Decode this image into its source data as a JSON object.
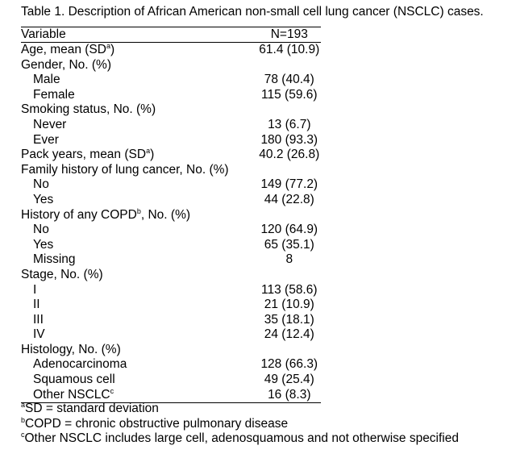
{
  "caption": "Table 1. Description of African American non-small cell lung cancer (NSCLC) cases.",
  "header": {
    "variable": "Variable",
    "n": "N=193"
  },
  "rows": [
    {
      "label": "Age, mean (SD",
      "sup": "a",
      "suffix": ")",
      "value": "61.4 (10.9)",
      "indent": false
    },
    {
      "label": "Gender, No. (%)",
      "value": "",
      "indent": false
    },
    {
      "label": "Male",
      "value": "78 (40.4)",
      "indent": true
    },
    {
      "label": "Female",
      "value": "115 (59.6)",
      "indent": true
    },
    {
      "label": "Smoking status, No. (%)",
      "value": "",
      "indent": false
    },
    {
      "label": "Never",
      "value": "13 (6.7)",
      "indent": true
    },
    {
      "label": "Ever",
      "value": "180 (93.3)",
      "indent": true
    },
    {
      "label": "Pack years, mean (SD",
      "sup": "a",
      "suffix": ")",
      "value": "40.2 (26.8)",
      "indent": false
    },
    {
      "label": "Family history of lung cancer, No. (%)",
      "value": "",
      "indent": false
    },
    {
      "label": "No",
      "value": "149 (77.2)",
      "indent": true
    },
    {
      "label": "Yes",
      "value": "44 (22.8)",
      "indent": true
    },
    {
      "label": "History of any COPD",
      "sup": "b",
      "suffix": ", No. (%)",
      "value": "",
      "indent": false
    },
    {
      "label": "No",
      "value": "120 (64.9)",
      "indent": true
    },
    {
      "label": "Yes",
      "value": "65 (35.1)",
      "indent": true
    },
    {
      "label": "Missing",
      "value": "8",
      "indent": true
    },
    {
      "label": "Stage, No. (%)",
      "value": "",
      "indent": false
    },
    {
      "label": "I",
      "value": "113 (58.6)",
      "indent": true
    },
    {
      "label": "II",
      "value": "21 (10.9)",
      "indent": true
    },
    {
      "label": "III",
      "value": "35 (18.1)",
      "indent": true
    },
    {
      "label": "IV",
      "value": "24 (12.4)",
      "indent": true
    },
    {
      "label": "Histology, No. (%)",
      "value": "",
      "indent": false
    },
    {
      "label": "Adenocarcinoma",
      "value": "128 (66.3)",
      "indent": true
    },
    {
      "label": "Squamous cell",
      "value": "49 (25.4)",
      "indent": true
    },
    {
      "label": "Other NSCLC",
      "sup": "c",
      "suffix": "",
      "value": "16 (8.3)",
      "indent": true
    }
  ],
  "footnotes": [
    {
      "mark": "a",
      "text": "SD = standard deviation"
    },
    {
      "mark": "b",
      "text": "COPD = chronic obstructive pulmonary disease"
    },
    {
      "mark": "c",
      "text": "Other NSCLC includes large cell, adenosquamous and not otherwise specified"
    }
  ]
}
